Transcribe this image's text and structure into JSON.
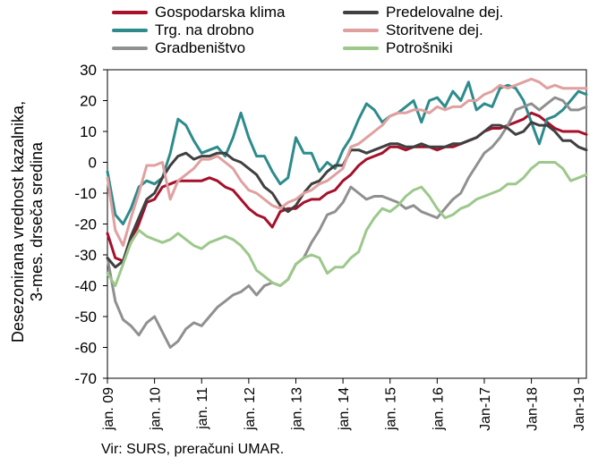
{
  "source": "Vir: SURS, preračuni UMAR.",
  "chart_data": {
    "type": "line",
    "title": "",
    "ylabel_lines": [
      "Desezonirana vrednost kazalnika,",
      "3-mes. drseča sredina"
    ],
    "ylim": [
      -70,
      30
    ],
    "yticks": [
      30,
      20,
      10,
      0,
      -10,
      -20,
      -30,
      -40,
      -50,
      -60,
      -70
    ],
    "xlim": [
      0,
      122
    ],
    "xticks": [
      {
        "label": "jan. 09",
        "month": 0
      },
      {
        "label": "jan. 10",
        "month": 12
      },
      {
        "label": "jan. 11",
        "month": 24
      },
      {
        "label": "jan. 12",
        "month": 36
      },
      {
        "label": "jan. 13",
        "month": 48
      },
      {
        "label": "jan. 14",
        "month": 60
      },
      {
        "label": "jan. 15",
        "month": 72
      },
      {
        "label": "jan. 16",
        "month": 84
      },
      {
        "label": "Jan-17",
        "month": 96
      },
      {
        "label": "Jan-18",
        "month": 108
      },
      {
        "label": "Jan-19",
        "month": 120
      }
    ],
    "grid": false,
    "legend_position": "top",
    "series": [
      {
        "name": "Gospodarska klima",
        "color": "#a5102a",
        "x": [
          0,
          2,
          4,
          6,
          8,
          10,
          12,
          14,
          16,
          18,
          20,
          22,
          24,
          26,
          28,
          30,
          32,
          34,
          36,
          38,
          40,
          42,
          44,
          46,
          48,
          50,
          52,
          54,
          56,
          58,
          60,
          62,
          64,
          66,
          68,
          70,
          72,
          74,
          76,
          78,
          80,
          82,
          84,
          86,
          88,
          90,
          92,
          94,
          96,
          98,
          100,
          102,
          104,
          106,
          108,
          110,
          112,
          114,
          116,
          118,
          120,
          122
        ],
        "values": [
          -23,
          -31,
          -32,
          -26,
          -20,
          -13,
          -12,
          -8,
          -7,
          -6,
          -6,
          -6,
          -6,
          -5,
          -6,
          -8,
          -9,
          -12,
          -15,
          -17,
          -18,
          -21,
          -16,
          -15,
          -15,
          -13,
          -12,
          -12,
          -10,
          -9,
          -6,
          -4,
          -1,
          1,
          2,
          3,
          5,
          5,
          4,
          5,
          5,
          5,
          4,
          5,
          5,
          6,
          7,
          8,
          10,
          11,
          11,
          12,
          13,
          14,
          16,
          15,
          13,
          11,
          10,
          10,
          10,
          9
        ]
      },
      {
        "name": "Trg. na drobno",
        "color": "#2e8b8c",
        "x": [
          0,
          2,
          4,
          6,
          8,
          10,
          12,
          14,
          16,
          18,
          20,
          22,
          24,
          26,
          28,
          30,
          32,
          34,
          36,
          38,
          40,
          42,
          44,
          46,
          48,
          50,
          52,
          54,
          56,
          58,
          60,
          62,
          64,
          66,
          68,
          70,
          72,
          74,
          76,
          78,
          80,
          82,
          84,
          86,
          88,
          90,
          92,
          94,
          96,
          98,
          100,
          102,
          104,
          106,
          108,
          110,
          112,
          114,
          116,
          118,
          120,
          122
        ],
        "values": [
          -3,
          -17,
          -20,
          -15,
          -8,
          -6,
          -7,
          -5,
          3,
          14,
          12,
          7,
          3,
          4,
          5,
          2,
          8,
          16,
          8,
          2,
          2,
          -3,
          -7,
          -5,
          8,
          3,
          3,
          -3,
          0,
          -2,
          4,
          8,
          14,
          19,
          17,
          13,
          15,
          16,
          18,
          20,
          13,
          20,
          21,
          18,
          23,
          20,
          26,
          17,
          19,
          18,
          24,
          25,
          24,
          20,
          13,
          6,
          14,
          15,
          17,
          20,
          23,
          22
        ]
      },
      {
        "name": "Gradbeništvo",
        "color": "#909090",
        "x": [
          0,
          2,
          4,
          6,
          8,
          10,
          12,
          14,
          16,
          18,
          20,
          22,
          24,
          26,
          28,
          30,
          32,
          34,
          36,
          38,
          40,
          42,
          44,
          46,
          48,
          50,
          52,
          54,
          56,
          58,
          60,
          62,
          64,
          66,
          68,
          70,
          72,
          74,
          76,
          78,
          80,
          82,
          84,
          86,
          88,
          90,
          92,
          94,
          96,
          98,
          100,
          102,
          104,
          106,
          108,
          110,
          112,
          114,
          116,
          118,
          120,
          122
        ],
        "values": [
          -31,
          -45,
          -51,
          -53,
          -56,
          -52,
          -50,
          -55,
          -60,
          -58,
          -54,
          -52,
          -53,
          -50,
          -47,
          -45,
          -43,
          -42,
          -40,
          -43,
          -40,
          -39,
          -40,
          -38,
          -33,
          -31,
          -26,
          -22,
          -17,
          -16,
          -13,
          -8,
          -10,
          -12,
          -11,
          -11,
          -12,
          -13,
          -15,
          -14,
          -16,
          -17,
          -18,
          -15,
          -12,
          -10,
          -5,
          -1,
          3,
          5,
          8,
          12,
          17,
          18,
          19,
          17,
          19,
          21,
          20,
          17,
          17,
          18
        ]
      },
      {
        "name": "Predelovalne dej.",
        "color": "#404040",
        "x": [
          0,
          2,
          4,
          6,
          8,
          10,
          12,
          14,
          16,
          18,
          20,
          22,
          24,
          26,
          28,
          30,
          32,
          34,
          36,
          38,
          40,
          42,
          44,
          46,
          48,
          50,
          52,
          54,
          56,
          58,
          60,
          62,
          64,
          66,
          68,
          70,
          72,
          74,
          76,
          78,
          80,
          82,
          84,
          86,
          88,
          90,
          92,
          94,
          96,
          98,
          100,
          102,
          104,
          106,
          108,
          110,
          112,
          114,
          116,
          118,
          120,
          122
        ],
        "values": [
          -31,
          -34,
          -32,
          -24,
          -18,
          -12,
          -10,
          -5,
          -1,
          2,
          3,
          1,
          2,
          2,
          3,
          3,
          1,
          0,
          -2,
          -4,
          -8,
          -10,
          -14,
          -16,
          -14,
          -10,
          -7,
          -6,
          -3,
          -1,
          -1,
          4,
          4,
          3,
          4,
          5,
          6,
          6,
          5,
          5,
          6,
          5,
          5,
          5,
          6,
          6,
          7,
          8,
          10,
          12,
          12,
          11,
          9,
          10,
          13,
          12,
          12,
          10,
          7,
          7,
          5,
          4
        ]
      },
      {
        "name": "Storitvene dej.",
        "color": "#e0a0a0",
        "x": [
          0,
          2,
          4,
          6,
          8,
          10,
          12,
          14,
          16,
          18,
          20,
          22,
          24,
          26,
          28,
          30,
          32,
          34,
          36,
          38,
          40,
          42,
          44,
          46,
          48,
          50,
          52,
          54,
          56,
          58,
          60,
          62,
          64,
          66,
          68,
          70,
          72,
          74,
          76,
          78,
          80,
          82,
          84,
          86,
          88,
          90,
          92,
          94,
          96,
          98,
          100,
          102,
          104,
          106,
          108,
          110,
          112,
          114,
          116,
          118,
          120,
          122
        ],
        "values": [
          -5,
          -22,
          -27,
          -18,
          -10,
          -1,
          -1,
          0,
          -12,
          -6,
          -4,
          -2,
          1,
          1,
          2,
          0,
          -2,
          -6,
          -9,
          -10,
          -12,
          -14,
          -15,
          -13,
          -12,
          -10,
          -9,
          -7,
          -6,
          -4,
          -2,
          5,
          6,
          8,
          10,
          12,
          15,
          16,
          16,
          17,
          17,
          16,
          18,
          17,
          18,
          18,
          20,
          20,
          22,
          23,
          25,
          24,
          25,
          26,
          27,
          26,
          24,
          25,
          24,
          24,
          24,
          24
        ]
      },
      {
        "name": "Potrošniki",
        "color": "#9dc88b",
        "x": [
          0,
          2,
          4,
          6,
          8,
          10,
          12,
          14,
          16,
          18,
          20,
          22,
          24,
          26,
          28,
          30,
          32,
          34,
          36,
          38,
          40,
          42,
          44,
          46,
          48,
          50,
          52,
          54,
          56,
          58,
          60,
          62,
          64,
          66,
          68,
          70,
          72,
          74,
          76,
          78,
          80,
          82,
          84,
          86,
          88,
          90,
          92,
          94,
          96,
          98,
          100,
          102,
          104,
          106,
          108,
          110,
          112,
          114,
          116,
          118,
          120,
          122
        ],
        "values": [
          -36,
          -40,
          -33,
          -26,
          -22,
          -24,
          -25,
          -26,
          -25,
          -23,
          -25,
          -27,
          -28,
          -26,
          -25,
          -24,
          -25,
          -27,
          -30,
          -35,
          -37,
          -39,
          -40,
          -38,
          -33,
          -31,
          -30,
          -31,
          -36,
          -34,
          -34,
          -31,
          -29,
          -22,
          -18,
          -15,
          -16,
          -14,
          -11,
          -9,
          -8,
          -11,
          -15,
          -18,
          -17,
          -15,
          -14,
          -12,
          -11,
          -10,
          -9,
          -7,
          -7,
          -5,
          -2,
          0,
          0,
          0,
          -2,
          -6,
          -5,
          -4
        ]
      }
    ]
  }
}
